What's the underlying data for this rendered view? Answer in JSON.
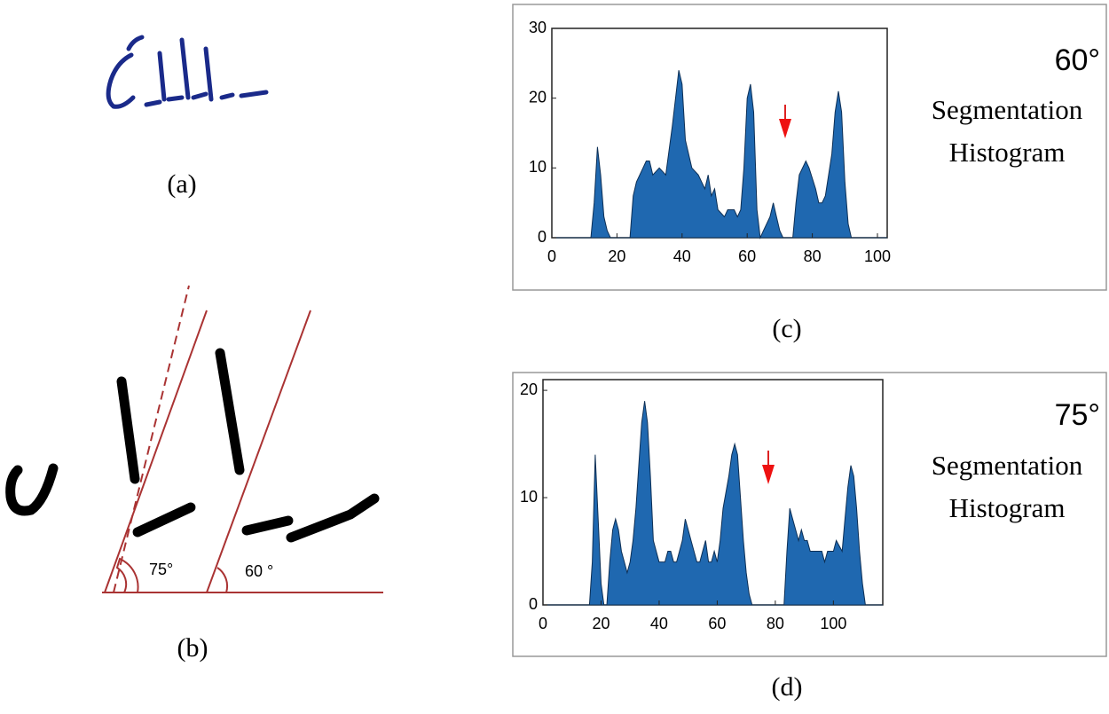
{
  "chart_data": [
    {
      "type": "area",
      "angle_label": "60°",
      "title_lines": [
        "Segmentation",
        "Histogram"
      ],
      "color": "#1f68b0",
      "x": [
        0,
        12,
        13,
        14,
        15,
        16,
        17,
        18,
        24,
        25,
        26,
        28,
        29,
        30,
        31,
        33,
        35,
        37,
        39,
        40,
        41,
        43,
        45,
        46,
        47,
        48,
        49,
        50,
        51,
        53,
        54,
        56,
        57,
        58,
        59,
        60,
        61,
        62,
        63,
        64,
        65,
        67,
        68,
        69,
        70,
        71,
        74,
        75,
        76,
        78,
        79,
        81,
        82,
        83,
        84,
        86,
        87,
        88,
        89,
        90,
        91,
        92,
        103
      ],
      "values": [
        0,
        0,
        5,
        13,
        9,
        3,
        1,
        0,
        0,
        6,
        8,
        10,
        11,
        11,
        9,
        10,
        9,
        16,
        24,
        22,
        14,
        10,
        9,
        8,
        7,
        9,
        6,
        7,
        4,
        3,
        4,
        4,
        3,
        4,
        10,
        20,
        22,
        18,
        4,
        0,
        1,
        3,
        5,
        3,
        1,
        0,
        0,
        5,
        9,
        11,
        10,
        7,
        5,
        5,
        6,
        12,
        18,
        21,
        18,
        8,
        2,
        0,
        0
      ],
      "xlim": [
        0,
        103
      ],
      "ylim": [
        0,
        30
      ],
      "xticks": [
        0,
        20,
        40,
        60,
        80,
        100
      ],
      "yticks": [
        0,
        10,
        20,
        30
      ],
      "caption": "(c)"
    },
    {
      "type": "area",
      "angle_label": "75°",
      "title_lines": [
        "Segmentation",
        "Histogram"
      ],
      "color": "#1f68b0",
      "x": [
        0,
        16,
        17,
        18,
        19,
        20,
        21,
        22,
        23,
        24,
        25,
        26,
        27,
        28,
        29,
        30,
        31,
        32,
        33,
        34,
        35,
        36,
        37,
        38,
        40,
        42,
        43,
        44,
        45,
        46,
        48,
        49,
        50,
        51,
        52,
        53,
        54,
        55,
        56,
        57,
        58,
        59,
        60,
        61,
        62,
        64,
        65,
        66,
        67,
        68,
        69,
        70,
        71,
        72,
        83,
        84,
        85,
        86,
        88,
        89,
        90,
        91,
        92,
        94,
        96,
        97,
        98,
        100,
        101,
        103,
        104,
        105,
        106,
        107,
        108,
        109,
        110,
        111,
        117
      ],
      "values": [
        0,
        0,
        4,
        14,
        8,
        2,
        0,
        0,
        4,
        7,
        8,
        7,
        5,
        4,
        3,
        4,
        6,
        9,
        13,
        17,
        19,
        17,
        12,
        6,
        4,
        4,
        5,
        5,
        4,
        4,
        6,
        8,
        7,
        6,
        5,
        4,
        4,
        5,
        6,
        4,
        4,
        5,
        4,
        6,
        9,
        12,
        14,
        15,
        14,
        10,
        6,
        3,
        1,
        0,
        0,
        5,
        9,
        8,
        6,
        7,
        6,
        6,
        5,
        5,
        5,
        4,
        5,
        5,
        6,
        5,
        8,
        11,
        13,
        12,
        9,
        5,
        2,
        0,
        0
      ],
      "xlim": [
        0,
        117
      ],
      "ylim": [
        0,
        21
      ],
      "xticks": [
        0,
        20,
        40,
        60,
        80,
        100
      ],
      "yticks": [
        0,
        10,
        20
      ],
      "caption": "(d)"
    }
  ],
  "panels": {
    "a": "(a)",
    "b": "(b)"
  },
  "diagram": {
    "angle_1": "75°",
    "angle_2": "60 °"
  }
}
